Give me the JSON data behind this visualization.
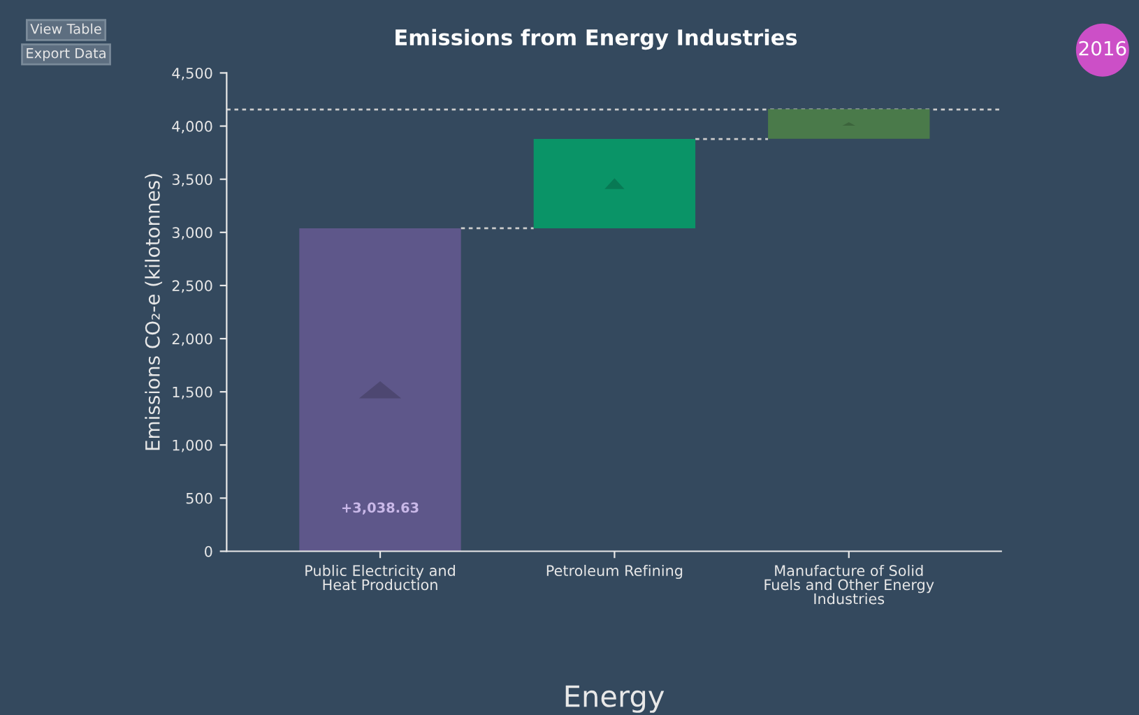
{
  "chart_data": {
    "type": "bar",
    "title": "Emissions from Energy Industries",
    "xlabel": "Energy",
    "ylabel": "Emissions CO₂-e (kilotonnes)",
    "categories": [
      "Public Electricity and\nHeat Production",
      "Petroleum Refining",
      "Manufacture of Solid\nFuels and Other Energy\nIndustries"
    ],
    "values": [
      3038.63,
      840,
      280
    ],
    "base": [
      0,
      3038.63,
      3880
    ],
    "colors": [
      "#5e578a",
      "#0a9467",
      "#4a7a4a"
    ],
    "value_labels": [
      "+3,038.63",
      null,
      null
    ],
    "ylim": [
      0,
      4500
    ],
    "yticks": [
      0,
      {
        "value": 500,
        "label": "500"
      },
      {
        "value": 1000,
        "label": "1,000"
      },
      {
        "value": 1500,
        "label": "1,500"
      },
      {
        "value": 2000,
        "label": "2,000"
      },
      {
        "value": 2500,
        "label": "2,500"
      },
      {
        "value": 3000,
        "label": "3,000"
      },
      {
        "value": 3500,
        "label": "3,500"
      },
      {
        "value": 4000,
        "label": "4,000"
      },
      {
        "value": 4500,
        "label": "4,500"
      }
    ],
    "ref_lines": [
      {
        "axis": "y",
        "value": 4155,
        "color": "#cccccc",
        "line_style": "dotted"
      }
    ],
    "annotations": [
      "View Table",
      "Export Data",
      "2016"
    ],
    "grid": false,
    "legend": false
  }
}
